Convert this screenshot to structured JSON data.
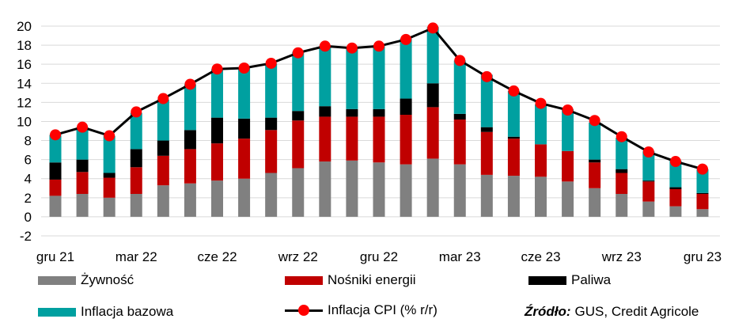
{
  "chart_data": {
    "type": "bar",
    "stacked": true,
    "categories": [
      "gru 21",
      "sty 22",
      "lut 22",
      "mar 22",
      "kwi 22",
      "maj 22",
      "cze 22",
      "lip 22",
      "sie 22",
      "wrz 22",
      "paź 22",
      "lis 22",
      "gru 22",
      "sty 23",
      "lut 23",
      "mar 23",
      "kwi 23",
      "maj 23",
      "cze 23",
      "lip 23",
      "sie 23",
      "wrz 23",
      "paź 23",
      "lis 23",
      "gru 23"
    ],
    "x_tick_labels": [
      {
        "index": 0,
        "label": "gru 21"
      },
      {
        "index": 3,
        "label": "mar 22"
      },
      {
        "index": 6,
        "label": "cze 22"
      },
      {
        "index": 9,
        "label": "wrz 22"
      },
      {
        "index": 12,
        "label": "gru 22"
      },
      {
        "index": 15,
        "label": "mar 23"
      },
      {
        "index": 18,
        "label": "cze 23"
      },
      {
        "index": 21,
        "label": "wrz 23"
      },
      {
        "index": 24,
        "label": "gru 23"
      }
    ],
    "series": [
      {
        "name": "Żywność",
        "color": "#808080",
        "kind": "bar",
        "values": [
          2.2,
          2.4,
          2.0,
          2.4,
          3.3,
          3.5,
          3.8,
          4.0,
          4.6,
          5.1,
          5.8,
          5.9,
          5.7,
          5.5,
          6.1,
          5.5,
          4.4,
          4.3,
          4.2,
          3.7,
          3.0,
          2.4,
          1.6,
          1.1,
          0.8
        ]
      },
      {
        "name": "Nośniki energii",
        "color": "#c00000",
        "kind": "bar",
        "values": [
          1.7,
          2.3,
          2.1,
          2.8,
          3.1,
          3.6,
          3.9,
          4.2,
          4.5,
          5.0,
          4.7,
          4.6,
          4.8,
          5.2,
          5.4,
          4.7,
          4.5,
          3.9,
          3.4,
          3.2,
          2.7,
          2.2,
          2.1,
          1.8,
          1.6
        ]
      },
      {
        "name": "Paliwa",
        "color": "#000000",
        "kind": "bar",
        "values": [
          1.8,
          1.3,
          0.5,
          1.9,
          1.6,
          2.0,
          2.7,
          2.1,
          1.3,
          1.0,
          1.1,
          0.8,
          0.8,
          1.7,
          2.5,
          0.6,
          0.5,
          0.2,
          0.0,
          0.0,
          0.3,
          0.4,
          0.1,
          0.2,
          0.1
        ]
      },
      {
        "name": "Inflacja bazowa",
        "color": "#00a0a0",
        "kind": "bar",
        "values": [
          2.9,
          3.4,
          3.9,
          3.8,
          4.3,
          4.8,
          5.1,
          5.3,
          5.7,
          6.2,
          6.3,
          6.5,
          6.7,
          6.3,
          5.9,
          5.6,
          5.5,
          4.8,
          4.2,
          4.4,
          3.9,
          3.3,
          3.1,
          2.8,
          2.5
        ]
      },
      {
        "name": "Inflacja CPI (% r/r)",
        "color": "#ff0000",
        "kind": "line",
        "values": [
          8.6,
          9.4,
          8.5,
          11.0,
          12.4,
          13.9,
          15.5,
          15.6,
          16.1,
          17.2,
          17.9,
          17.7,
          17.9,
          18.6,
          19.8,
          16.4,
          14.7,
          13.2,
          11.9,
          11.2,
          10.1,
          8.4,
          6.8,
          5.8,
          5.0
        ]
      }
    ],
    "ylim": [
      -2,
      20
    ],
    "y_ticks": [
      -2,
      0,
      2,
      4,
      6,
      8,
      10,
      12,
      14,
      16,
      18,
      20
    ],
    "grid": true,
    "legend_position": "bottom",
    "source_label": "Źródło:",
    "source_text": "GUS, Credit Agricole"
  }
}
